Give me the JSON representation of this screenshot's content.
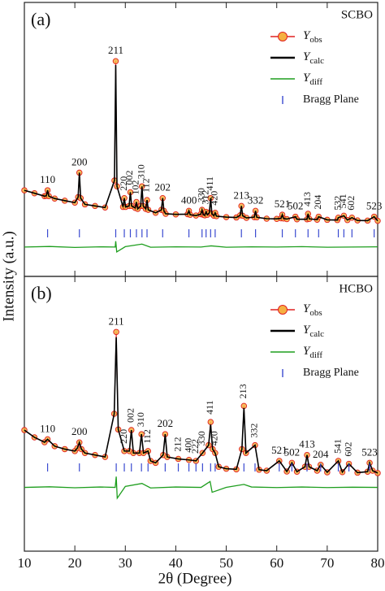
{
  "chart_data": [
    {
      "type": "line",
      "panel_label": "(a)",
      "sample": "SCBO",
      "y_label": "Intensity (a.u.)",
      "xlim": [
        10,
        80
      ],
      "xticks": [
        10,
        20,
        30,
        40,
        50,
        60,
        70,
        80
      ],
      "ylim": [
        0,
        140
      ],
      "x": [
        10,
        12,
        14,
        14.35,
        14.6,
        14.85,
        16,
        18,
        20,
        20.65,
        20.9,
        21.15,
        22,
        24,
        26,
        27.85,
        28.1,
        28.35,
        29.55,
        29.8,
        30.05,
        30.75,
        31.0,
        31.25,
        31.95,
        32.2,
        32.45,
        33.05,
        33.3,
        33.55,
        34.05,
        34.3,
        34.55,
        36,
        37.15,
        37.4,
        37.65,
        38,
        40,
        42.35,
        42.6,
        42.85,
        44,
        44.95,
        45.2,
        45.45,
        45.75,
        46.0,
        46.25,
        46.65,
        46.9,
        47.15,
        47.55,
        47.8,
        48.05,
        50,
        52,
        52.75,
        53.0,
        53.25,
        54,
        55.55,
        55.8,
        56.05,
        58,
        60,
        60.85,
        61.1,
        61.35,
        62,
        63.7,
        64,
        66,
        66.2,
        66.45,
        68,
        68.3,
        70,
        72,
        72.2,
        73.3,
        74,
        74.9,
        76,
        78,
        79.3,
        80
      ],
      "series": [
        {
          "name": "Yobs",
          "color": "#f5b041",
          "edge": "#e02020",
          "values": [
            44,
            42.5,
            41,
            41.2,
            44,
            41,
            39.8,
            38.7,
            37.7,
            40.5,
            53,
            40,
            36.8,
            36,
            35.2,
            49,
            110,
            46,
            35.5,
            40,
            35.5,
            36,
            43,
            36,
            35,
            38,
            34.5,
            36,
            46,
            36,
            34.5,
            39,
            34,
            32.5,
            34,
            40,
            33.5,
            32,
            31.7,
            31.8,
            33.5,
            31.5,
            31.1,
            31.8,
            34,
            31.5,
            31.2,
            33,
            31.5,
            32.5,
            40,
            32,
            31,
            32.5,
            30.8,
            30.3,
            30.1,
            31.2,
            36,
            31,
            29.9,
            30.3,
            33.5,
            30.2,
            29.5,
            29.4,
            29.7,
            31.5,
            29.6,
            29.3,
            30.5,
            29.2,
            29.2,
            32,
            29.4,
            29,
            30.5,
            28.9,
            28.8,
            30,
            31,
            28.8,
            30,
            28.6,
            28.5,
            30.5,
            28.4
          ]
        },
        {
          "name": "Ycalc",
          "color": "#000000",
          "values": [
            44,
            42.5,
            41,
            41.2,
            44,
            41,
            39.8,
            38.7,
            37.7,
            40.5,
            53,
            40,
            36.8,
            36,
            35.2,
            49,
            108,
            46,
            35.5,
            40,
            35.5,
            36,
            43,
            36,
            35,
            38,
            34.5,
            36,
            46,
            36,
            34.5,
            39,
            34,
            32.5,
            34,
            40,
            33.5,
            32,
            31.7,
            31.8,
            33.5,
            31.5,
            31.1,
            31.8,
            34,
            31.5,
            31.2,
            33,
            31.5,
            32.5,
            40,
            32,
            31,
            32.5,
            30.8,
            30.3,
            30.1,
            31.2,
            36,
            31,
            29.9,
            30.3,
            33.5,
            30.2,
            29.5,
            29.4,
            29.7,
            31.5,
            29.6,
            29.3,
            30.5,
            29.2,
            29.2,
            32,
            29.4,
            29,
            30.5,
            28.9,
            28.8,
            30,
            31,
            28.8,
            30,
            28.6,
            28.5,
            30.5,
            28.4
          ]
        },
        {
          "name": "Ydiff",
          "color": "#1e9e1e",
          "x": [
            10,
            15,
            20,
            25,
            28,
            28.1,
            28.3,
            30,
            33.3,
            35,
            40,
            45,
            47,
            50,
            55,
            60,
            65,
            70,
            75,
            80
          ],
          "values": [
            15,
            15.3,
            14.8,
            15.1,
            15,
            18,
            12.5,
            15.2,
            16.5,
            14.9,
            15.1,
            15,
            15.6,
            14.9,
            15.1,
            15,
            15.2,
            14.9,
            15,
            15.1
          ]
        }
      ],
      "bragg": {
        "name": "Bragg Plane",
        "color": "#3a4ad0"
      },
      "reflections": [
        {
          "hkl": "110",
          "x": 14.6
        },
        {
          "hkl": "200",
          "x": 20.9
        },
        {
          "hkl": "211",
          "x": 28.1
        },
        {
          "hkl": "220",
          "x": 29.8
        },
        {
          "hkl": "002",
          "x": 31.0
        },
        {
          "hkl": "102",
          "x": 32.2
        },
        {
          "hkl": "310",
          "x": 33.3
        },
        {
          "hkl": "112",
          "x": 34.3
        },
        {
          "hkl": "202",
          "x": 37.4
        },
        {
          "hkl": "400",
          "x": 42.6
        },
        {
          "hkl": "330",
          "x": 45.2
        },
        {
          "hkl": "312",
          "x": 46.0
        },
        {
          "hkl": "411",
          "x": 46.9
        },
        {
          "hkl": "420",
          "x": 47.8
        },
        {
          "hkl": "213",
          "x": 53.0
        },
        {
          "hkl": "332",
          "x": 55.8
        },
        {
          "hkl": "521",
          "x": 61.1
        },
        {
          "hkl": "502",
          "x": 63.7
        },
        {
          "hkl": "413",
          "x": 66.2
        },
        {
          "hkl": "204",
          "x": 68.3
        },
        {
          "hkl": "532",
          "x": 72.2
        },
        {
          "hkl": "541",
          "x": 73.3
        },
        {
          "hkl": "602",
          "x": 74.9
        },
        {
          "hkl": "523",
          "x": 79.3
        }
      ]
    },
    {
      "type": "line",
      "panel_label": "(b)",
      "sample": "HCBO",
      "x_label": "2θ (Degree)",
      "xlim": [
        10,
        80
      ],
      "xticks": [
        10,
        20,
        30,
        40,
        50,
        60,
        70,
        80
      ],
      "ylim": [
        0,
        140
      ],
      "x": [
        10,
        12,
        14,
        14.6,
        16,
        18,
        20,
        20.5,
        20.9,
        21.3,
        22,
        24,
        26,
        27.8,
        28.2,
        28.6,
        29.8,
        30.8,
        31.2,
        31.6,
        32.8,
        33.2,
        33.6,
        34.5,
        35,
        36,
        37.5,
        37.9,
        38.3,
        40.5,
        42.6,
        44,
        45.3,
        46.5,
        46.9,
        47.3,
        47.8,
        48.5,
        50,
        52,
        53.1,
        53.5,
        53.9,
        55.7,
        56.5,
        58,
        60.5,
        62,
        63,
        64,
        65.6,
        66,
        66.4,
        68,
        68.7,
        70,
        72.2,
        73,
        74.3,
        76,
        78,
        78.4,
        79,
        80
      ],
      "series": [
        {
          "name": "Yobs",
          "color": "#f5b041",
          "edge": "#e02020",
          "values": [
            61.7,
            58,
            55.5,
            57,
            53.5,
            52,
            51,
            52.5,
            55.4,
            52,
            50,
            49,
            48,
            70,
            111.7,
            62,
            51,
            51,
            61.7,
            50,
            50,
            59.6,
            50,
            51,
            46,
            45,
            49,
            59.6,
            48,
            47,
            46.5,
            46,
            50,
            54,
            65.8,
            52,
            50,
            43,
            42,
            41.7,
            52,
            74,
            50,
            54,
            41.5,
            41,
            46,
            40.6,
            45,
            40.5,
            43,
            49,
            43,
            41,
            44,
            40.2,
            46,
            40.3,
            44.5,
            40,
            40.5,
            45,
            41,
            39.8
          ]
        },
        {
          "name": "Ycalc",
          "color": "#000000",
          "values": [
            61.7,
            58,
            55.5,
            57,
            53.5,
            52,
            51,
            52.5,
            55.4,
            52,
            50,
            49,
            48,
            70,
            109,
            62,
            51,
            51,
            61.7,
            50,
            50,
            59.6,
            50,
            51,
            46,
            45,
            49,
            59.6,
            48,
            47,
            46.5,
            46,
            50,
            54,
            64.5,
            52,
            50,
            43,
            42,
            41.7,
            52,
            73,
            50,
            54,
            41.5,
            41,
            46,
            40.6,
            45,
            40.5,
            43,
            49,
            43,
            41,
            44,
            40.2,
            46,
            40.3,
            44.5,
            40,
            40.5,
            45,
            41,
            39.8
          ]
        },
        {
          "name": "Ydiff",
          "color": "#1e9e1e",
          "x": [
            10,
            15,
            20,
            25,
            28,
            28.2,
            28.4,
            30,
            33.3,
            35,
            40,
            45,
            46.8,
            47.2,
            50,
            53.5,
            55,
            60,
            65,
            70,
            75,
            80
          ],
          "values": [
            32.5,
            32.8,
            32.3,
            32.7,
            32.5,
            38,
            27,
            33,
            34.5,
            32.2,
            32.7,
            32.5,
            35.5,
            30,
            32.5,
            34,
            32.7,
            32.4,
            32.7,
            32.4,
            32.6,
            32.5
          ]
        }
      ],
      "bragg": {
        "name": "Bragg Plane",
        "color": "#3a4ad0"
      },
      "reflections": [
        {
          "hkl": "110",
          "x": 14.6
        },
        {
          "hkl": "200",
          "x": 20.9
        },
        {
          "hkl": "211",
          "x": 28.2
        },
        {
          "hkl": "220",
          "x": 29.8
        },
        {
          "hkl": "002",
          "x": 31.2
        },
        {
          "hkl": "310",
          "x": 33.2
        },
        {
          "hkl": "112",
          "x": 34.5
        },
        {
          "hkl": "202",
          "x": 37.9
        },
        {
          "hkl": "212",
          "x": 40.5
        },
        {
          "hkl": "400",
          "x": 42.6
        },
        {
          "hkl": "222",
          "x": 44
        },
        {
          "hkl": "330",
          "x": 45.3
        },
        {
          "hkl": "411",
          "x": 46.9
        },
        {
          "hkl": "420",
          "x": 47.8
        },
        {
          "hkl": "213",
          "x": 53.5
        },
        {
          "hkl": "332",
          "x": 55.7
        },
        {
          "hkl": "521",
          "x": 60.5
        },
        {
          "hkl": "502",
          "x": 63
        },
        {
          "hkl": "413",
          "x": 66
        },
        {
          "hkl": "204",
          "x": 68.7
        },
        {
          "hkl": "541",
          "x": 72.2
        },
        {
          "hkl": "602",
          "x": 74.3
        },
        {
          "hkl": "523",
          "x": 78.4
        }
      ]
    }
  ]
}
